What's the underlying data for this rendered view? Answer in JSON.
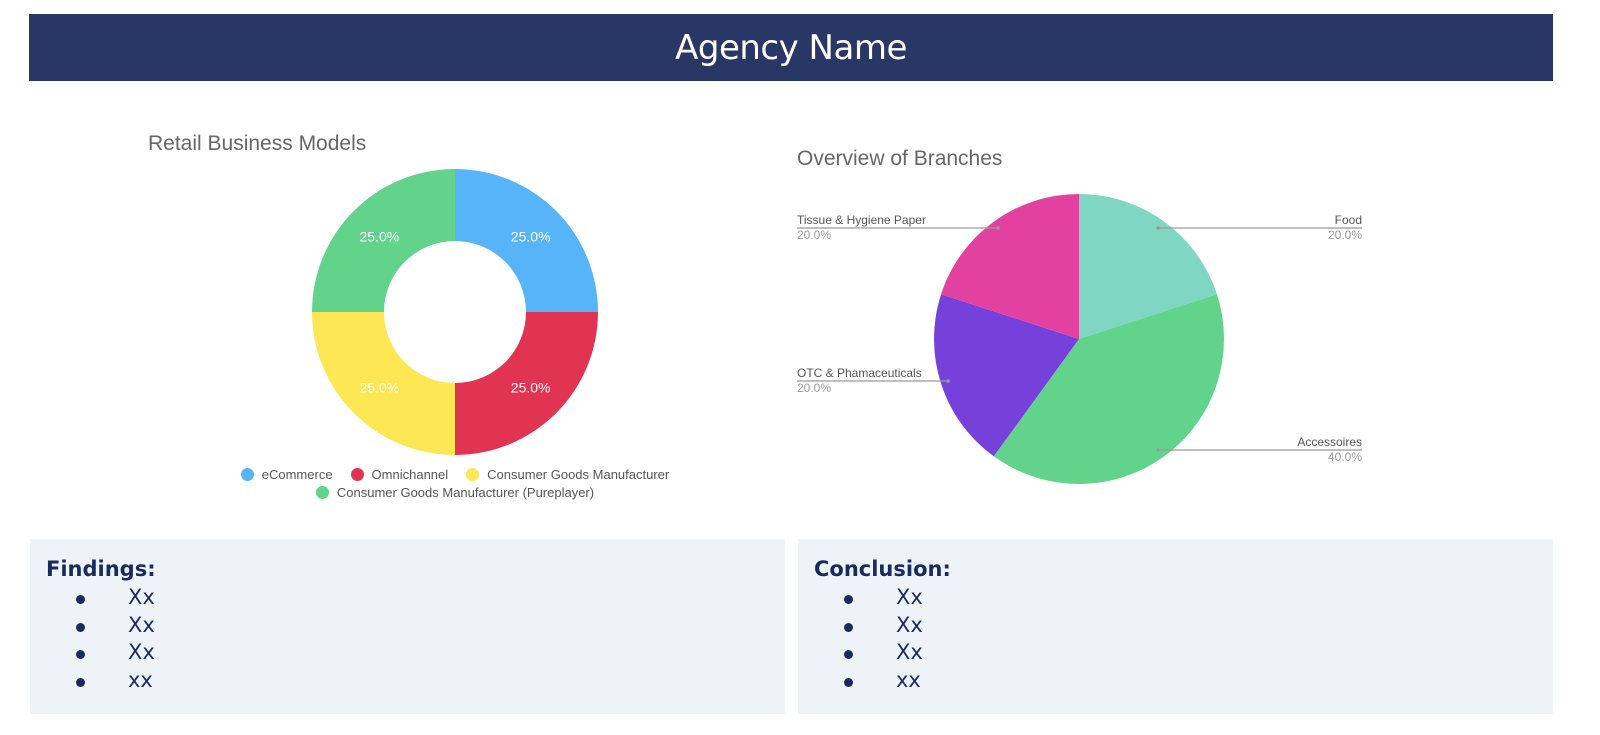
{
  "header": {
    "title": "Agency Name",
    "bg_color": "#293766"
  },
  "chart_data": [
    {
      "type": "donut",
      "title": "Retail Business Models",
      "categories": [
        "eCommerce",
        "Omnichannel",
        "Consumer Goods Manufacturer",
        "Consumer Goods Manufacturer (Pureplayer)"
      ],
      "values": [
        25.0,
        25.0,
        25.0,
        25.0
      ],
      "data_labels": [
        "25.0%",
        "25.0%",
        "25.0%",
        "25.0%"
      ],
      "colors": [
        "#57b4f8",
        "#e03452",
        "#fde753",
        "#62d38b"
      ],
      "legend_position": "bottom"
    },
    {
      "type": "pie",
      "title": "Overview of Branches",
      "categories": [
        "Food",
        "Accessoires",
        "OTC & Phamaceuticals",
        "Tissue & Hygiene Paper"
      ],
      "values": [
        20.0,
        40.0,
        20.0,
        20.0
      ],
      "data_labels": [
        "20.0%",
        "40.0%",
        "20.0%",
        "20.0%"
      ],
      "colors": [
        "#7fd6c3",
        "#62d38b",
        "#7640db",
        "#e3419f"
      ],
      "legend_position": "labeled"
    }
  ],
  "findings": {
    "title": "Findings:",
    "items": [
      "Xx",
      "Xx",
      "Xx",
      "xx"
    ]
  },
  "conclusion": {
    "title": "Conclusion:",
    "items": [
      "Xx",
      "Xx",
      "Xx",
      "xx"
    ]
  }
}
